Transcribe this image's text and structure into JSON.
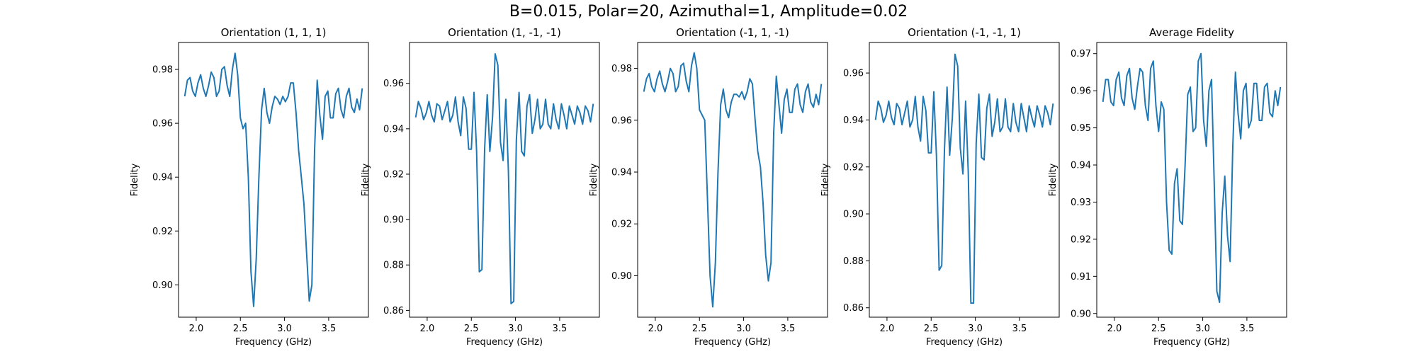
{
  "figure": {
    "title": "B=0.015, Polar=20, Azimuthal=1, Amplitude=0.02"
  },
  "colors": {
    "line": "#1f77b4",
    "axes": "#000000",
    "background": "#ffffff"
  },
  "chart_data": [
    {
      "type": "line",
      "title": "Orientation (1, 1, 1)",
      "xlabel": "Frequency (GHz)",
      "ylabel": "Fidelity",
      "xlim": [
        1.8,
        3.95
      ],
      "ylim": [
        0.888,
        0.99
      ],
      "xticks": [
        2.0,
        2.5,
        3.0,
        3.5
      ],
      "yticks": [
        0.9,
        0.92,
        0.94,
        0.96,
        0.98
      ],
      "tick_decimals": 2,
      "grid": false,
      "series": [
        {
          "x": [
            1.87,
            1.9,
            1.93,
            1.96,
            1.99,
            2.02,
            2.05,
            2.08,
            2.11,
            2.14,
            2.17,
            2.2,
            2.23,
            2.26,
            2.29,
            2.32,
            2.35,
            2.38,
            2.41,
            2.44,
            2.47,
            2.5,
            2.53,
            2.56,
            2.59,
            2.62,
            2.65,
            2.68,
            2.71,
            2.74,
            2.77,
            2.8,
            2.83,
            2.86,
            2.89,
            2.92,
            2.95,
            2.98,
            3.01,
            3.04,
            3.07,
            3.1,
            3.13,
            3.16,
            3.19,
            3.22,
            3.25,
            3.28,
            3.31,
            3.34,
            3.37,
            3.4,
            3.43,
            3.46,
            3.49,
            3.52,
            3.55,
            3.58,
            3.61,
            3.64,
            3.67,
            3.7,
            3.73,
            3.76,
            3.79,
            3.82,
            3.85,
            3.88
          ],
          "y": [
            0.97,
            0.976,
            0.977,
            0.972,
            0.97,
            0.975,
            0.978,
            0.973,
            0.97,
            0.974,
            0.979,
            0.977,
            0.97,
            0.972,
            0.98,
            0.981,
            0.974,
            0.97,
            0.98,
            0.986,
            0.978,
            0.962,
            0.958,
            0.96,
            0.94,
            0.905,
            0.892,
            0.91,
            0.94,
            0.965,
            0.973,
            0.964,
            0.96,
            0.966,
            0.97,
            0.969,
            0.967,
            0.97,
            0.968,
            0.97,
            0.975,
            0.975,
            0.964,
            0.95,
            0.94,
            0.93,
            0.912,
            0.894,
            0.9,
            0.95,
            0.976,
            0.963,
            0.954,
            0.97,
            0.972,
            0.962,
            0.962,
            0.971,
            0.973,
            0.965,
            0.962,
            0.97,
            0.973,
            0.966,
            0.964,
            0.969,
            0.965,
            0.973
          ]
        }
      ]
    },
    {
      "type": "line",
      "title": "Orientation (1, -1, -1)",
      "xlabel": "Frequency (GHz)",
      "ylabel": "Fidelity",
      "xlim": [
        1.8,
        3.95
      ],
      "ylim": [
        0.857,
        0.978
      ],
      "xticks": [
        2.0,
        2.5,
        3.0,
        3.5
      ],
      "yticks": [
        0.86,
        0.88,
        0.9,
        0.92,
        0.94,
        0.96
      ],
      "tick_decimals": 2,
      "grid": false,
      "series": [
        {
          "x": [
            1.87,
            1.9,
            1.93,
            1.96,
            1.99,
            2.02,
            2.05,
            2.08,
            2.11,
            2.14,
            2.17,
            2.2,
            2.23,
            2.26,
            2.29,
            2.32,
            2.35,
            2.38,
            2.41,
            2.44,
            2.47,
            2.5,
            2.53,
            2.56,
            2.59,
            2.62,
            2.65,
            2.68,
            2.71,
            2.74,
            2.77,
            2.8,
            2.83,
            2.86,
            2.89,
            2.92,
            2.95,
            2.98,
            3.01,
            3.04,
            3.07,
            3.1,
            3.13,
            3.16,
            3.19,
            3.22,
            3.25,
            3.28,
            3.31,
            3.34,
            3.37,
            3.4,
            3.43,
            3.46,
            3.49,
            3.52,
            3.55,
            3.58,
            3.61,
            3.64,
            3.67,
            3.7,
            3.73,
            3.76,
            3.79,
            3.82,
            3.85,
            3.88
          ],
          "y": [
            0.945,
            0.952,
            0.949,
            0.944,
            0.947,
            0.952,
            0.946,
            0.943,
            0.951,
            0.95,
            0.944,
            0.948,
            0.952,
            0.943,
            0.946,
            0.954,
            0.943,
            0.937,
            0.954,
            0.949,
            0.931,
            0.931,
            0.956,
            0.93,
            0.877,
            0.878,
            0.931,
            0.955,
            0.93,
            0.945,
            0.973,
            0.968,
            0.934,
            0.926,
            0.953,
            0.921,
            0.863,
            0.864,
            0.935,
            0.956,
            0.93,
            0.928,
            0.95,
            0.955,
            0.938,
            0.944,
            0.953,
            0.94,
            0.942,
            0.953,
            0.942,
            0.94,
            0.951,
            0.944,
            0.94,
            0.951,
            0.946,
            0.94,
            0.95,
            0.946,
            0.942,
            0.95,
            0.947,
            0.942,
            0.95,
            0.948,
            0.943,
            0.951
          ]
        }
      ]
    },
    {
      "type": "line",
      "title": "Orientation (-1, 1, -1)",
      "xlabel": "Frequency (GHz)",
      "ylabel": "Fidelity",
      "xlim": [
        1.8,
        3.95
      ],
      "ylim": [
        0.884,
        0.99
      ],
      "xticks": [
        2.0,
        2.5,
        3.0,
        3.5
      ],
      "yticks": [
        0.9,
        0.92,
        0.94,
        0.96,
        0.98
      ],
      "tick_decimals": 2,
      "grid": false,
      "series": [
        {
          "x": [
            1.87,
            1.9,
            1.93,
            1.96,
            1.99,
            2.02,
            2.05,
            2.08,
            2.11,
            2.14,
            2.17,
            2.2,
            2.23,
            2.26,
            2.29,
            2.32,
            2.35,
            2.38,
            2.41,
            2.44,
            2.47,
            2.5,
            2.53,
            2.56,
            2.59,
            2.62,
            2.65,
            2.68,
            2.71,
            2.74,
            2.77,
            2.8,
            2.83,
            2.86,
            2.89,
            2.92,
            2.95,
            2.98,
            3.01,
            3.04,
            3.07,
            3.1,
            3.13,
            3.16,
            3.19,
            3.22,
            3.25,
            3.28,
            3.31,
            3.34,
            3.37,
            3.4,
            3.43,
            3.46,
            3.49,
            3.52,
            3.55,
            3.58,
            3.61,
            3.64,
            3.67,
            3.7,
            3.73,
            3.76,
            3.79,
            3.82,
            3.85,
            3.88
          ],
          "y": [
            0.971,
            0.976,
            0.978,
            0.973,
            0.971,
            0.976,
            0.979,
            0.974,
            0.971,
            0.975,
            0.98,
            0.978,
            0.971,
            0.973,
            0.981,
            0.982,
            0.975,
            0.971,
            0.981,
            0.986,
            0.98,
            0.964,
            0.962,
            0.96,
            0.93,
            0.9,
            0.888,
            0.905,
            0.94,
            0.966,
            0.972,
            0.964,
            0.961,
            0.967,
            0.97,
            0.97,
            0.969,
            0.971,
            0.968,
            0.971,
            0.976,
            0.974,
            0.96,
            0.948,
            0.942,
            0.928,
            0.908,
            0.898,
            0.905,
            0.955,
            0.977,
            0.966,
            0.955,
            0.968,
            0.972,
            0.963,
            0.963,
            0.972,
            0.974,
            0.966,
            0.963,
            0.971,
            0.974,
            0.967,
            0.965,
            0.97,
            0.966,
            0.974
          ]
        }
      ]
    },
    {
      "type": "line",
      "title": "Orientation (-1, -1, 1)",
      "xlabel": "Frequency (GHz)",
      "ylabel": "Fidelity",
      "xlim": [
        1.8,
        3.95
      ],
      "ylim": [
        0.856,
        0.973
      ],
      "xticks": [
        2.0,
        2.5,
        3.0,
        3.5
      ],
      "yticks": [
        0.86,
        0.88,
        0.9,
        0.92,
        0.94,
        0.96
      ],
      "tick_decimals": 2,
      "grid": false,
      "series": [
        {
          "x": [
            1.87,
            1.9,
            1.93,
            1.96,
            1.99,
            2.02,
            2.05,
            2.08,
            2.11,
            2.14,
            2.17,
            2.2,
            2.23,
            2.26,
            2.29,
            2.32,
            2.35,
            2.38,
            2.41,
            2.44,
            2.47,
            2.5,
            2.53,
            2.56,
            2.59,
            2.62,
            2.65,
            2.68,
            2.71,
            2.74,
            2.77,
            2.8,
            2.83,
            2.86,
            2.89,
            2.92,
            2.95,
            2.98,
            3.01,
            3.04,
            3.07,
            3.1,
            3.13,
            3.16,
            3.19,
            3.22,
            3.25,
            3.28,
            3.31,
            3.34,
            3.37,
            3.4,
            3.43,
            3.46,
            3.49,
            3.52,
            3.55,
            3.58,
            3.61,
            3.64,
            3.67,
            3.7,
            3.73,
            3.76,
            3.79,
            3.82,
            3.85,
            3.88
          ],
          "y": [
            0.94,
            0.948,
            0.945,
            0.939,
            0.942,
            0.948,
            0.941,
            0.938,
            0.947,
            0.945,
            0.938,
            0.943,
            0.948,
            0.937,
            0.94,
            0.95,
            0.937,
            0.931,
            0.95,
            0.944,
            0.926,
            0.926,
            0.952,
            0.925,
            0.876,
            0.878,
            0.927,
            0.954,
            0.925,
            0.941,
            0.968,
            0.963,
            0.928,
            0.917,
            0.948,
            0.918,
            0.862,
            0.862,
            0.93,
            0.951,
            0.924,
            0.923,
            0.945,
            0.951,
            0.933,
            0.939,
            0.949,
            0.935,
            0.937,
            0.949,
            0.937,
            0.935,
            0.947,
            0.939,
            0.935,
            0.947,
            0.941,
            0.935,
            0.946,
            0.941,
            0.937,
            0.946,
            0.942,
            0.937,
            0.946,
            0.943,
            0.938,
            0.947
          ]
        }
      ]
    },
    {
      "type": "line",
      "title": "Average Fidelity",
      "xlabel": "Frequency (GHz)",
      "ylabel": "Fidelity",
      "xlim": [
        1.8,
        3.95
      ],
      "ylim": [
        0.899,
        0.973
      ],
      "xticks": [
        2.0,
        2.5,
        3.0,
        3.5
      ],
      "yticks": [
        0.9,
        0.91,
        0.92,
        0.93,
        0.94,
        0.95,
        0.96,
        0.97
      ],
      "tick_decimals": 2,
      "grid": false,
      "series": [
        {
          "x": [
            1.87,
            1.9,
            1.93,
            1.96,
            1.99,
            2.02,
            2.05,
            2.08,
            2.11,
            2.14,
            2.17,
            2.2,
            2.23,
            2.26,
            2.29,
            2.32,
            2.35,
            2.38,
            2.41,
            2.44,
            2.47,
            2.5,
            2.53,
            2.56,
            2.59,
            2.62,
            2.65,
            2.68,
            2.71,
            2.74,
            2.77,
            2.8,
            2.83,
            2.86,
            2.89,
            2.92,
            2.95,
            2.98,
            3.01,
            3.04,
            3.07,
            3.1,
            3.13,
            3.16,
            3.19,
            3.22,
            3.25,
            3.28,
            3.31,
            3.34,
            3.37,
            3.4,
            3.43,
            3.46,
            3.49,
            3.52,
            3.55,
            3.58,
            3.61,
            3.64,
            3.67,
            3.7,
            3.73,
            3.76,
            3.79,
            3.82,
            3.85,
            3.88
          ],
          "y": [
            0.957,
            0.963,
            0.963,
            0.957,
            0.956,
            0.963,
            0.965,
            0.958,
            0.956,
            0.964,
            0.966,
            0.958,
            0.955,
            0.961,
            0.966,
            0.965,
            0.956,
            0.952,
            0.966,
            0.968,
            0.956,
            0.949,
            0.957,
            0.955,
            0.93,
            0.917,
            0.916,
            0.935,
            0.939,
            0.925,
            0.924,
            0.94,
            0.959,
            0.961,
            0.949,
            0.95,
            0.968,
            0.97,
            0.952,
            0.945,
            0.96,
            0.963,
            0.935,
            0.906,
            0.903,
            0.927,
            0.937,
            0.921,
            0.914,
            0.945,
            0.965,
            0.954,
            0.947,
            0.96,
            0.962,
            0.95,
            0.952,
            0.962,
            0.962,
            0.952,
            0.952,
            0.961,
            0.962,
            0.954,
            0.953,
            0.96,
            0.956,
            0.961
          ]
        }
      ]
    }
  ]
}
